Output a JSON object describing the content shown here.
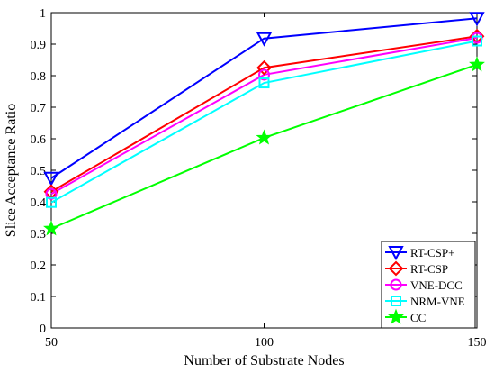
{
  "chart_data": {
    "type": "line",
    "xlabel": "Number of Substrate Nodes",
    "ylabel": "Slice Acceptance Ratio",
    "x": [
      50,
      100,
      150
    ],
    "xticks": [
      "50",
      "100",
      "150"
    ],
    "yticks": [
      "0",
      "0.1",
      "0.2",
      "0.3",
      "0.4",
      "0.5",
      "0.6",
      "0.7",
      "0.8",
      "0.9",
      "1"
    ],
    "xlim": [
      50,
      150
    ],
    "ylim": [
      0,
      1
    ],
    "grid": false,
    "legend_position": "bottom-right",
    "series": [
      {
        "name": "RT-CSP+",
        "values": [
          0.475,
          0.918,
          0.982
        ],
        "color": "#0000ff",
        "marker": "triangle-down"
      },
      {
        "name": "RT-CSP",
        "values": [
          0.432,
          0.825,
          0.925
        ],
        "color": "#ff0000",
        "marker": "diamond"
      },
      {
        "name": "VNE-DCC",
        "values": [
          0.425,
          0.803,
          0.92
        ],
        "color": "#ff00ff",
        "marker": "circle"
      },
      {
        "name": "NRM-VNE",
        "values": [
          0.398,
          0.777,
          0.91
        ],
        "color": "#00ffff",
        "marker": "square"
      },
      {
        "name": "CC",
        "values": [
          0.315,
          0.603,
          0.835
        ],
        "color": "#00ff00",
        "marker": "star"
      }
    ]
  }
}
